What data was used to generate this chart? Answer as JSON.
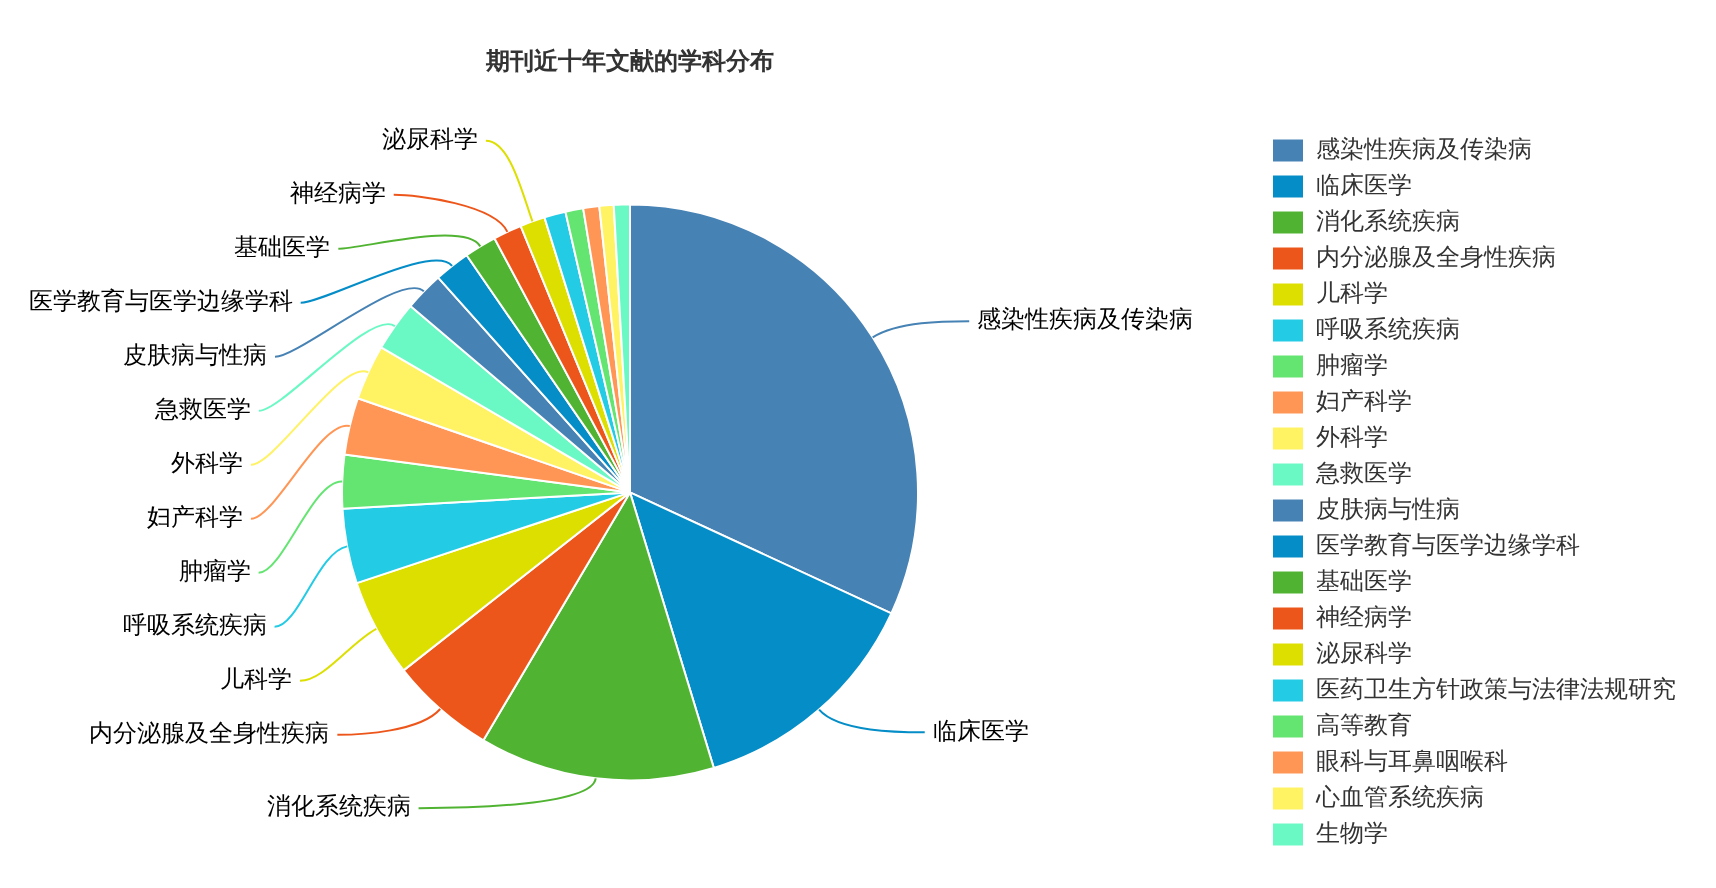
{
  "chart_data": {
    "type": "pie",
    "title": "期刊近十年文献的学科分布",
    "categories": [
      "感染性疾病及传染病",
      "临床医学",
      "消化系统疾病",
      "内分泌腺及全身性疾病",
      "儿科学",
      "呼吸系统疾病",
      "肿瘤学",
      "妇产科学",
      "外科学",
      "急救医学",
      "皮肤病与性病",
      "医学教育与医学边缘学科",
      "基础医学",
      "神经病学",
      "泌尿科学",
      "医药卫生方针政策与法律法规研究",
      "高等教育",
      "眼科与耳鼻咽喉科",
      "心血管系统疾病",
      "生物学"
    ],
    "values": [
      31.9,
      13.4,
      13.2,
      5.9,
      5.5,
      4.2,
      3.0,
      3.2,
      3.1,
      2.8,
      2.2,
      2.0,
      1.8,
      1.6,
      1.4,
      1.2,
      1.0,
      0.9,
      0.8,
      0.9
    ],
    "colors": [
      "#4682b4",
      "#058dc7",
      "#50b432",
      "#ed561b",
      "#dddf00",
      "#24cbe5",
      "#64e572",
      "#ff9655",
      "#fff263",
      "#6af9c4",
      "#4682b4",
      "#058dc7",
      "#50b432",
      "#ed561b",
      "#dddf00",
      "#24cbe5",
      "#64e572",
      "#ff9655",
      "#fff263",
      "#6af9c4"
    ],
    "legend": "right"
  }
}
